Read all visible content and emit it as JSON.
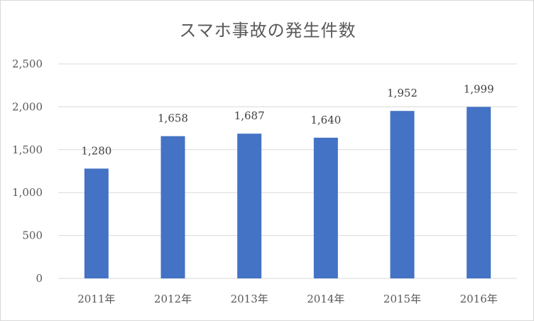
{
  "chart_data": {
    "type": "bar",
    "title": "スマホ事故の発生件数",
    "categories": [
      "2011年",
      "2012年",
      "2013年",
      "2014年",
      "2015年",
      "2016年"
    ],
    "values": [
      1280,
      1658,
      1687,
      1640,
      1952,
      1999
    ],
    "value_labels": [
      "1,280",
      "1,658",
      "1,687",
      "1,640",
      "1,952",
      "1,999"
    ],
    "y_ticks": [
      "0",
      "500",
      "1,000",
      "1,500",
      "2,000",
      "2,500"
    ],
    "ylim": [
      0,
      2500
    ],
    "grid": true,
    "bar_color": "#4472c4",
    "grid_color": "#d9d9d9"
  }
}
